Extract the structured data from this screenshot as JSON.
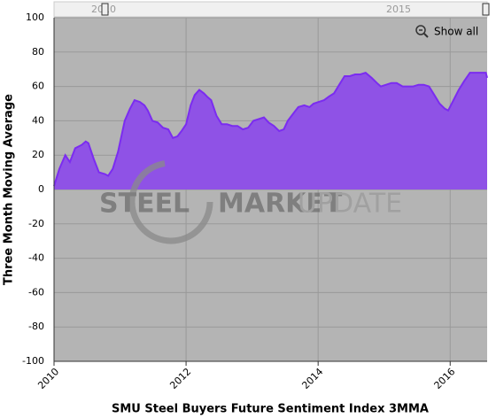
{
  "chart_data": {
    "type": "area",
    "x_label": "SMU Steel Buyers Future Sentiment Index 3MMA",
    "y_label": "Three Month Moving Average",
    "navigator_labels": [
      "2010",
      "2015"
    ],
    "button": "Show all",
    "watermark": [
      "STEEL",
      "MARKET",
      "UPDATE"
    ],
    "color": "#8f52e6",
    "line_color": "#7b2cf0",
    "grid": true,
    "xlim": [
      2010,
      2016.56
    ],
    "xticks": [
      2010,
      2012,
      2014,
      2016
    ],
    "ylim": [
      -100,
      100
    ],
    "yticks": [
      -100,
      -80,
      -60,
      -40,
      -20,
      0,
      20,
      40,
      60,
      80,
      100
    ],
    "x": [
      2010.0,
      2010.08,
      2010.17,
      2010.24,
      2010.32,
      2010.42,
      2010.48,
      2010.52,
      2010.6,
      2010.68,
      2010.77,
      2010.82,
      2010.89,
      2010.97,
      2011.07,
      2011.15,
      2011.22,
      2011.3,
      2011.37,
      2011.42,
      2011.49,
      2011.57,
      2011.65,
      2011.73,
      2011.8,
      2011.87,
      2011.93,
      2012.0,
      2012.07,
      2012.13,
      2012.2,
      2012.27,
      2012.32,
      2012.38,
      2012.46,
      2012.54,
      2012.62,
      2012.7,
      2012.78,
      2012.86,
      2012.94,
      2013.02,
      2013.1,
      2013.18,
      2013.25,
      2013.33,
      2013.41,
      2013.48,
      2013.54,
      2013.62,
      2013.7,
      2013.79,
      2013.87,
      2013.93,
      2014.01,
      2014.09,
      2014.16,
      2014.24,
      2014.32,
      2014.4,
      2014.48,
      2014.56,
      2014.64,
      2014.72,
      2014.81,
      2014.89,
      2014.95,
      2015.03,
      2015.11,
      2015.19,
      2015.28,
      2015.36,
      2015.44,
      2015.52,
      2015.6,
      2015.68,
      2015.76,
      2015.84,
      2015.92,
      2015.97,
      2016.05,
      2016.13,
      2016.21,
      2016.3,
      2016.38,
      2016.46,
      2016.54,
      2016.56
    ],
    "values": [
      2,
      12,
      20,
      16,
      24,
      26,
      28,
      27,
      18,
      10,
      9,
      8,
      12,
      22,
      40,
      47,
      52,
      51,
      49,
      46,
      40,
      39,
      36,
      35,
      30,
      31,
      34,
      38,
      49,
      55,
      58,
      56,
      54,
      52,
      43,
      38,
      38,
      37,
      37,
      35,
      36,
      40,
      41,
      42,
      39,
      37,
      34,
      35,
      40,
      44,
      48,
      49,
      48,
      50,
      51,
      52,
      54,
      56,
      61,
      66,
      66,
      67,
      67,
      68,
      65,
      62,
      60,
      61,
      62,
      62,
      60,
      60,
      60,
      61,
      61,
      60,
      55,
      50,
      47,
      46,
      52,
      58,
      63,
      68,
      68,
      68,
      68,
      65
    ]
  }
}
